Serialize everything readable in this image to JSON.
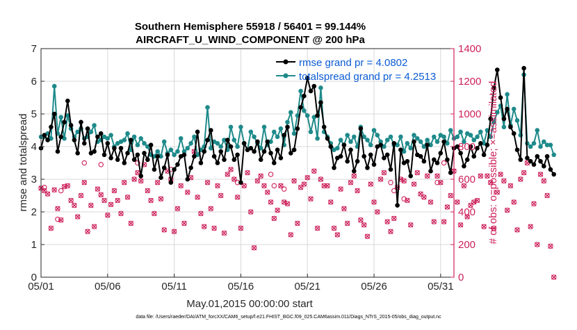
{
  "chart_data": {
    "type": "line",
    "title_line1": "Southern Hemisphere 55918 / 56401 = 99.144%",
    "title_line2": "AIRCRAFT_U_WIND_COMPONENT @ 200 hPa",
    "xlabel": "May.01,2015 00:00:00 start",
    "ylabel_left": "rmse and totalspread",
    "ylabel_right": "# of obs: o=possible; ×=assimilated",
    "footnote": "data file: /Users/raeder/DAI/ATM_forcXX/CAM6_setup/f.e21.FHIST_BGC.f09_025.CAM6assim.011/Diags_NTrS_2015-05/obs_diag_output.nc",
    "x_tick_labels": [
      "05/01",
      "05/06",
      "05/11",
      "05/16",
      "05/21",
      "05/26",
      "05/31"
    ],
    "x_tick_days": [
      1,
      6,
      11,
      16,
      21,
      26,
      31
    ],
    "x_range_days": [
      1,
      32
    ],
    "ylim_left": [
      0,
      7
    ],
    "yticks_left": [
      "0",
      "1",
      "2",
      "3",
      "4",
      "5",
      "6",
      "7"
    ],
    "ylim_right": [
      0,
      1400
    ],
    "yticks_right": [
      "0",
      "200",
      "400",
      "600",
      "800",
      "1000",
      "1200",
      "1400"
    ],
    "grid": true,
    "legend_position": "top-right",
    "colors": {
      "rmse": "#000000",
      "spread": "#1f8a8a",
      "obs": "#cc1f5a",
      "legend_text": "#0b5bd3",
      "grid": "#d8d8d8"
    },
    "series": [
      {
        "name": "rmse",
        "legend_label": "rmse grand pr = 4.0802",
        "start_day": 1,
        "step_days": 0.25,
        "values": [
          3.95,
          4.35,
          4.2,
          4.6,
          5.0,
          3.85,
          4.3,
          4.75,
          5.4,
          4.65,
          4.2,
          3.8,
          4.75,
          4.1,
          4.55,
          3.8,
          3.85,
          4.3,
          4.4,
          3.75,
          4.1,
          3.65,
          3.95,
          3.6,
          3.95,
          3.5,
          3.8,
          4.2,
          3.6,
          3.75,
          3.1,
          3.8,
          3.6,
          4.05,
          3.3,
          3.7,
          3.05,
          3.35,
          3.75,
          2.9,
          3.3,
          3.45,
          3.7,
          3.75,
          3.0,
          3.35,
          3.7,
          4.45,
          3.5,
          3.85,
          4.2,
          4.5,
          3.7,
          3.5,
          3.85,
          3.6,
          4.2,
          4.0,
          3.6,
          3.75,
          2.9,
          4.1,
          3.9,
          3.95,
          3.85,
          4.15,
          3.6,
          3.85,
          4.15,
          3.8,
          3.5,
          3.9,
          3.65,
          4.35,
          4.6,
          3.8,
          3.9,
          4.55,
          5.2,
          5.55,
          6.1,
          5.7,
          5.85,
          4.95,
          5.35,
          4.6,
          4.25,
          4.0,
          3.35,
          3.65,
          3.7,
          4.05,
          3.55,
          3.9,
          3.25,
          3.55,
          4.55,
          3.7,
          3.35,
          3.75,
          3.45,
          4.0,
          4.05,
          3.65,
          3.75,
          3.3,
          4.1,
          2.2,
          3.9,
          3.5,
          3.55,
          3.1,
          4.15,
          3.75,
          3.7,
          3.55,
          4.05,
          3.25,
          3.6,
          3.5,
          3.8,
          4.15,
          3.6,
          3.2,
          3.95,
          4.0,
          3.8,
          3.4,
          3.6,
          4.0,
          3.7,
          3.95,
          4.1,
          3.75,
          4.05,
          4.85,
          5.8,
          6.35,
          5.5,
          4.85,
          5.15,
          4.6,
          4.4,
          3.9,
          3.6,
          6.4,
          3.65,
          3.55,
          3.45,
          3.7,
          3.55,
          3.4,
          3.7,
          3.3,
          3.15
        ]
      },
      {
        "name": "totalspread",
        "legend_label": "totalspread grand pr = 4.2513",
        "start_day": 1,
        "step_days": 0.25,
        "values": [
          4.3,
          4.3,
          4.4,
          4.25,
          5.85,
          4.4,
          4.9,
          4.25,
          4.95,
          4.55,
          4.3,
          4.45,
          4.55,
          4.25,
          4.3,
          4.45,
          4.65,
          4.15,
          4.2,
          4.3,
          4.25,
          4.35,
          4.0,
          4.1,
          4.15,
          4.2,
          4.4,
          3.9,
          4.3,
          4.05,
          4.25,
          4.1,
          4.0,
          3.75,
          3.7,
          3.85,
          3.7,
          4.15,
          3.8,
          3.9,
          3.75,
          3.85,
          4.25,
          3.85,
          3.95,
          4.1,
          4.3,
          3.75,
          3.9,
          4.0,
          5.2,
          3.95,
          4.15,
          4.1,
          4.0,
          4.2,
          3.9,
          4.6,
          4.2,
          4.0,
          4.6,
          4.1,
          3.9,
          4.45,
          4.3,
          4.1,
          3.95,
          4.6,
          4.05,
          4.15,
          4.45,
          4.3,
          4.55,
          4.05,
          4.75,
          5.05,
          4.4,
          4.95,
          5.7,
          5.1,
          4.95,
          4.45,
          4.9,
          4.25,
          5.8,
          4.45,
          4.3,
          4.1,
          3.9,
          3.95,
          4.2,
          4.05,
          4.35,
          4.15,
          4.3,
          4.0,
          4.6,
          4.3,
          4.2,
          4.05,
          4.5,
          4.35,
          4.15,
          4.0,
          4.2,
          4.3,
          4.05,
          4.05,
          4.3,
          3.85,
          4.1,
          3.95,
          4.35,
          4.25,
          4.15,
          4.0,
          4.2,
          4.05,
          4.3,
          4.15,
          4.35,
          4.3,
          4.1,
          4.5,
          4.25,
          4.3,
          4.45,
          4.15,
          4.4,
          4.35,
          4.2,
          4.3,
          4.45,
          4.1,
          4.5,
          4.3,
          4.75,
          5.05,
          5.25,
          4.6,
          5.6,
          4.65,
          5.15,
          4.8,
          4.35,
          6.2,
          4.1,
          4.0,
          4.1,
          4.5,
          4.0,
          4.15,
          4.05,
          4.05,
          3.75
        ]
      }
    ],
    "obs_assimilated": {
      "marker": "×",
      "start_day": 1,
      "step_days": 0.25,
      "counts": [
        545,
        530,
        510,
        300,
        535,
        420,
        350,
        555,
        560,
        470,
        440,
        370,
        500,
        580,
        280,
        440,
        310,
        540,
        505,
        470,
        380,
        445,
        530,
        470,
        390,
        580,
        490,
        330,
        600,
        640,
        590,
        690,
        530,
        470,
        390,
        580,
        480,
        290,
        650,
        600,
        280,
        420,
        560,
        330,
        520,
        610,
        770,
        490,
        390,
        310,
        580,
        420,
        300,
        560,
        500,
        270,
        630,
        660,
        600,
        490,
        300,
        560,
        640,
        400,
        180,
        590,
        620,
        560,
        520,
        460,
        360,
        410,
        560,
        460,
        450,
        260,
        590,
        330,
        550,
        570,
        610,
        480,
        650,
        300,
        600,
        560,
        560,
        460,
        300,
        260,
        540,
        420,
        330,
        580,
        620,
        530,
        350,
        320,
        250,
        570,
        460,
        400,
        600,
        640,
        340,
        280,
        360,
        550,
        600,
        590,
        470,
        320,
        570,
        640,
        510,
        490,
        620,
        460,
        340,
        620,
        580,
        340,
        430,
        500,
        650,
        460,
        320,
        560,
        370,
        440,
        460,
        470,
        620,
        310,
        620,
        580,
        300,
        520,
        630,
        590,
        410,
        560,
        460,
        290,
        600,
        640,
        700,
        310,
        450,
        200,
        630,
        590,
        500,
        190,
        0
      ]
    },
    "obs_possible_extra": {
      "marker": "o",
      "points": [
        [
          1.25,
          550
        ],
        [
          2.25,
          355
        ],
        [
          2.5,
          530
        ],
        [
          4.25,
          700
        ],
        [
          5.5,
          690
        ],
        [
          8.25,
          700
        ],
        [
          10.75,
          660
        ],
        [
          15.75,
          580
        ],
        [
          18.25,
          630
        ],
        [
          18.5,
          560
        ],
        [
          19.25,
          540
        ],
        [
          27.25,
          580
        ],
        [
          27.5,
          530
        ],
        [
          28.25,
          480
        ],
        [
          30.75,
          580
        ],
        [
          31.25,
          700
        ]
      ]
    }
  }
}
